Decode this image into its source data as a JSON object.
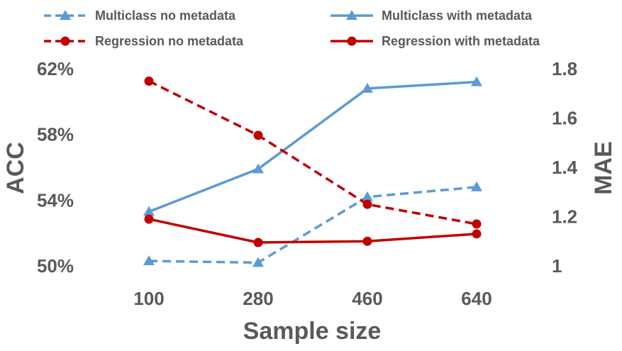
{
  "chart_data": {
    "type": "line",
    "title": "",
    "xlabel": "Sample size",
    "ylabel_left": "ACC",
    "ylabel_right": "MAE",
    "categories": [
      "100",
      "280",
      "460",
      "640"
    ],
    "y_left": {
      "lim": [
        0.5,
        0.62
      ],
      "ticks": [
        "50%",
        "54%",
        "58%",
        "62%"
      ]
    },
    "y_right": {
      "lim": [
        1.0,
        1.8
      ],
      "ticks": [
        "1",
        "1.2",
        "1.4",
        "1.6",
        "1.8"
      ]
    },
    "grid": false,
    "legend_position": "top",
    "series": [
      {
        "name": "Multiclass no metadata",
        "axis": "left",
        "values": [
          0.503,
          0.502,
          0.542,
          0.548
        ],
        "color": "#5B9BD5",
        "dash": true,
        "marker": "triangle"
      },
      {
        "name": "Multiclass with metadata",
        "axis": "left",
        "values": [
          0.533,
          0.559,
          0.608,
          0.612
        ],
        "color": "#5B9BD5",
        "dash": false,
        "marker": "triangle"
      },
      {
        "name": "Regression no metadata",
        "axis": "right",
        "values": [
          1.75,
          1.53,
          1.25,
          1.17
        ],
        "color": "#C00000",
        "dash": true,
        "marker": "circle"
      },
      {
        "name": "Regression with metadata",
        "axis": "right",
        "values": [
          1.19,
          1.095,
          1.1,
          1.13
        ],
        "color": "#C00000",
        "dash": false,
        "marker": "circle"
      }
    ]
  }
}
